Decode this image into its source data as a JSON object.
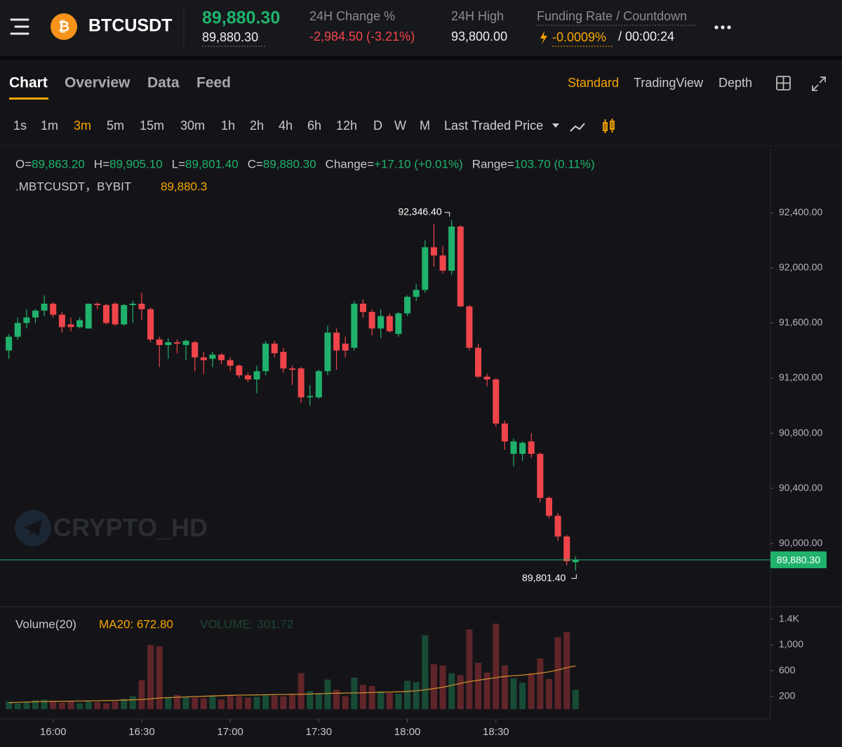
{
  "header": {
    "coin_glyph": "₿",
    "symbol": "BTCUSDT",
    "last_price": "89,880.30",
    "mark_price": "89,880.30",
    "change_label": "24H Change %",
    "change_value": "-2,984.50 (-3.21%)",
    "high_label": "24H High",
    "high_value": "93,800.00",
    "funding_label": "Funding Rate / Countdown",
    "funding_rate": "-0.0009%",
    "countdown": "/ 00:00:24"
  },
  "tabs": [
    "Chart",
    "Overview",
    "Data",
    "Feed"
  ],
  "view_modes": [
    "Standard",
    "TradingView",
    "Depth"
  ],
  "intervals": [
    "1s",
    "1m",
    "3m",
    "5m",
    "15m",
    "30m",
    "1h",
    "2h",
    "4h",
    "6h",
    "12h",
    "D",
    "W",
    "M"
  ],
  "price_source": "Last Traded Price",
  "legend": [
    {
      "key": "O=",
      "value": "89,863.20"
    },
    {
      "key": "H=",
      "value": "89,905.10"
    },
    {
      "key": "L=",
      "value": "89,801.40"
    },
    {
      "key": "C=",
      "value": "89,880.30"
    },
    {
      "key": "Change=",
      "value": "+17.10 (+0.01%)"
    },
    {
      "key": "Range=",
      "value": "103.70 (0.11%)"
    }
  ],
  "instrument": ".MBTCUSDT，BYBIT",
  "instrument_price": "89,880.3",
  "volume_legend": {
    "title": "Volume(20)",
    "ma": "MA20: 672.80",
    "volume": "VOLUME: 301.72"
  },
  "watermark": "CRYPTO_HD",
  "chart_data": {
    "type": "candlestick",
    "x": [
      "15:45",
      "15:48",
      "15:51",
      "15:54",
      "15:57",
      "16:00",
      "16:03",
      "16:06",
      "16:09",
      "16:12",
      "16:15",
      "16:18",
      "16:21",
      "16:24",
      "16:27",
      "16:30",
      "16:33",
      "16:36",
      "16:39",
      "16:42",
      "16:45",
      "16:48",
      "16:51",
      "16:54",
      "16:57",
      "17:00",
      "17:03",
      "17:06",
      "17:09",
      "17:12",
      "17:15",
      "17:18",
      "17:21",
      "17:24",
      "17:27",
      "17:30",
      "17:33",
      "17:36",
      "17:39",
      "17:42",
      "17:45",
      "17:48",
      "17:51",
      "17:54",
      "17:57",
      "18:00",
      "18:03",
      "18:06",
      "18:09",
      "18:12",
      "18:15",
      "18:18",
      "18:21",
      "18:24",
      "18:27",
      "18:30",
      "18:33",
      "18:36",
      "18:39",
      "18:42",
      "18:45",
      "18:48",
      "18:51",
      "18:54",
      "18:57"
    ],
    "open": [
      91400,
      91500,
      91600,
      91640,
      91690,
      91740,
      91660,
      91590,
      91570,
      91560,
      91740,
      91730,
      91740,
      91590,
      91730,
      91740,
      91700,
      91480,
      91440,
      91460,
      91440,
      91460,
      91350,
      91340,
      91370,
      91330,
      91290,
      91220,
      91190,
      91250,
      91450,
      91390,
      91270,
      91270,
      91060,
      91060,
      91250,
      91530,
      91450,
      91420,
      91740,
      91680,
      91560,
      91650,
      91520,
      91670,
      91790,
      91840,
      92150,
      92090,
      91980,
      92300,
      91720,
      91420,
      91210,
      91190,
      90870,
      90650,
      90650,
      90740,
      90650,
      90330,
      90200,
      90050,
      89863.2
    ],
    "high": [
      91520,
      91640,
      91700,
      91700,
      91800,
      91750,
      91680,
      91640,
      91640,
      91740,
      91750,
      91740,
      91750,
      91740,
      91760,
      91820,
      91710,
      91500,
      91490,
      91480,
      91480,
      91470,
      91390,
      91390,
      91380,
      91350,
      91300,
      91240,
      91290,
      91470,
      91470,
      91420,
      91290,
      91280,
      91150,
      91260,
      91580,
      91560,
      91500,
      91760,
      91770,
      91700,
      91700,
      91670,
      91680,
      91800,
      91880,
      92200,
      92320,
      92160,
      92346.4,
      92310,
      91730,
      91450,
      91230,
      91200,
      90890,
      90760,
      90740,
      90800,
      90660,
      90340,
      90220,
      90060,
      89905.1
    ],
    "low": [
      91340,
      91480,
      91560,
      91600,
      91650,
      91640,
      91530,
      91540,
      91560,
      91560,
      91700,
      91590,
      91580,
      91580,
      91600,
      91620,
      91460,
      91280,
      91340,
      91380,
      91330,
      91250,
      91230,
      91280,
      91300,
      91250,
      91200,
      91170,
      91090,
      91220,
      91350,
      91240,
      91150,
      91020,
      91000,
      91050,
      91220,
      91260,
      91350,
      91400,
      91640,
      91510,
      91490,
      91530,
      91500,
      91650,
      91760,
      91820,
      92010,
      91960,
      91950,
      91720,
      91400,
      91200,
      91140,
      90850,
      90680,
      90560,
      90600,
      90620,
      90300,
      90180,
      90020,
      89840,
      89801.4
    ],
    "close": [
      91500,
      91600,
      91640,
      91690,
      91740,
      91660,
      91570,
      91570,
      91620,
      91740,
      91730,
      91600,
      91590,
      91730,
      91740,
      91700,
      91480,
      91440,
      91460,
      91450,
      91470,
      91350,
      91330,
      91370,
      91330,
      91290,
      91220,
      91190,
      91250,
      91450,
      91380,
      91270,
      91260,
      91060,
      91070,
      91250,
      91530,
      91400,
      91400,
      91740,
      91680,
      91560,
      91650,
      91540,
      91670,
      91790,
      91840,
      92150,
      92090,
      91980,
      92300,
      91720,
      91420,
      91210,
      91190,
      90870,
      90740,
      90740,
      90730,
      90650,
      90330,
      90200,
      90050,
      89870,
      89880.3
    ],
    "volume": [
      120,
      90,
      110,
      140,
      150,
      130,
      100,
      120,
      90,
      130,
      110,
      90,
      120,
      160,
      200,
      450,
      1000,
      980,
      180,
      220,
      190,
      180,
      170,
      210,
      150,
      210,
      200,
      180,
      190,
      230,
      210,
      200,
      230,
      560,
      280,
      250,
      460,
      300,
      200,
      490,
      380,
      360,
      280,
      250,
      240,
      440,
      420,
      1150,
      700,
      680,
      560,
      530,
      1240,
      720,
      570,
      1330,
      680,
      480,
      410,
      560,
      790,
      470,
      1120,
      1200,
      301.72
    ],
    "ma20": [
      100,
      105,
      110,
      115,
      118,
      120,
      122,
      124,
      126,
      128,
      130,
      133,
      136,
      140,
      145,
      150,
      160,
      175,
      180,
      185,
      190,
      195,
      200,
      205,
      210,
      215,
      218,
      220,
      222,
      224,
      226,
      228,
      230,
      232,
      235,
      240,
      245,
      248,
      250,
      252,
      255,
      258,
      262,
      266,
      270,
      275,
      285,
      300,
      320,
      340,
      370,
      400,
      430,
      450,
      470,
      490,
      510,
      520,
      530,
      545,
      560,
      580,
      610,
      645,
      672.8
    ],
    "up_color": "#20b26c",
    "down_color": "#ef454a",
    "ma_color": "#c98a2b",
    "xlim": [
      "15:42",
      "20:03"
    ],
    "xticks": [
      "16:00",
      "16:30",
      "17:00",
      "17:30",
      "18:00",
      "18:30"
    ],
    "ylim": [
      89540,
      92850
    ],
    "yticks": [
      {
        "value": 90000,
        "label": "90,000.00"
      },
      {
        "value": 90400,
        "label": "90,400.00"
      },
      {
        "value": 90800,
        "label": "90,800.00"
      },
      {
        "value": 91200,
        "label": "91,200.00"
      },
      {
        "value": 91600,
        "label": "91,600.00"
      },
      {
        "value": 92000,
        "label": "92,000.00"
      },
      {
        "value": 92400,
        "label": "92,400.00"
      }
    ],
    "y2lim": [
      0,
      1540
    ],
    "y2ticks": [
      200,
      600,
      {
        "value": 1000,
        "label": "1,000"
      },
      {
        "value": 1400,
        "label": "1.4K"
      }
    ],
    "last_price": {
      "value": 89880.3,
      "label": "89,880.30"
    },
    "high_marker": {
      "value": 92346.4,
      "label": "92,346.40"
    },
    "low_marker": {
      "value": 89801.4,
      "label": "89,801.40"
    }
  }
}
